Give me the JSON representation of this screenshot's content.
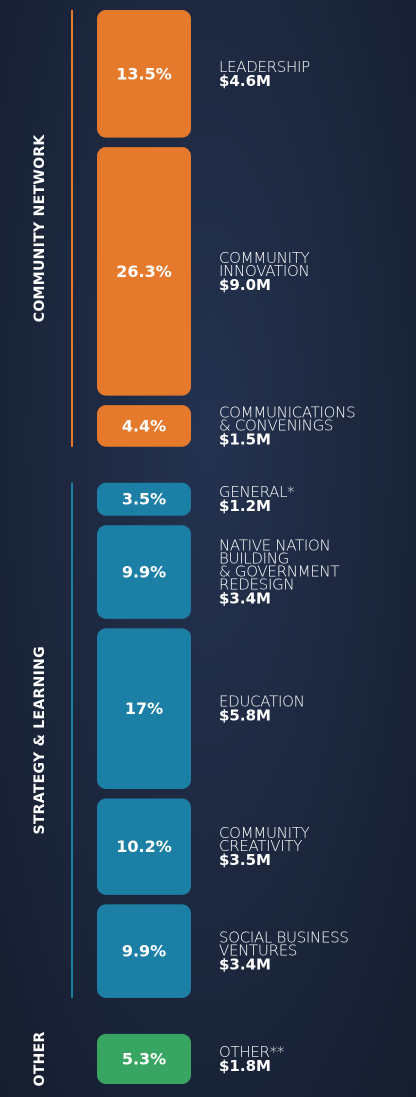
{
  "chart_data": {
    "type": "bar",
    "groups": [
      {
        "name": "COMMUNITY NETWORK",
        "color": "#e5792c",
        "values": [
          13.5,
          26.3,
          4.4
        ],
        "value_labels": [
          "13.5%",
          "26.3%",
          "4.4%"
        ],
        "labels": [
          [
            "LEADERSHIP"
          ],
          [
            "COMMUNITY",
            "INNOVATION"
          ],
          [
            "COMMUNICATIONS",
            "& CONVENINGS"
          ]
        ],
        "amounts": [
          "$4.6M",
          "$9.0M",
          "$1.5M"
        ]
      },
      {
        "name": "STRATEGY & LEARNING",
        "color": "#1c7fa6",
        "values": [
          3.5,
          9.9,
          17,
          10.2,
          9.9
        ],
        "value_labels": [
          "3.5%",
          "9.9%",
          "17%",
          "10.2%",
          "9.9%"
        ],
        "labels": [
          [
            "GENERAL*"
          ],
          [
            "NATIVE NATION",
            "BUILDING",
            "& GOVERNMENT",
            "REDESIGN"
          ],
          [
            "EDUCATION"
          ],
          [
            "COMMUNITY",
            "CREATIVITY"
          ],
          [
            "SOCIAL BUSINESS",
            "VENTURES"
          ]
        ],
        "amounts": [
          "$1.2M",
          "$3.4M",
          "$5.8M",
          "$3.5M",
          "$3.4M"
        ]
      },
      {
        "name": "OTHER",
        "color": "#39a563",
        "values": [
          5.3
        ],
        "value_labels": [
          "5.3%"
        ],
        "labels": [
          [
            "OTHER**"
          ]
        ],
        "amounts": [
          "$1.8M"
        ]
      }
    ]
  }
}
